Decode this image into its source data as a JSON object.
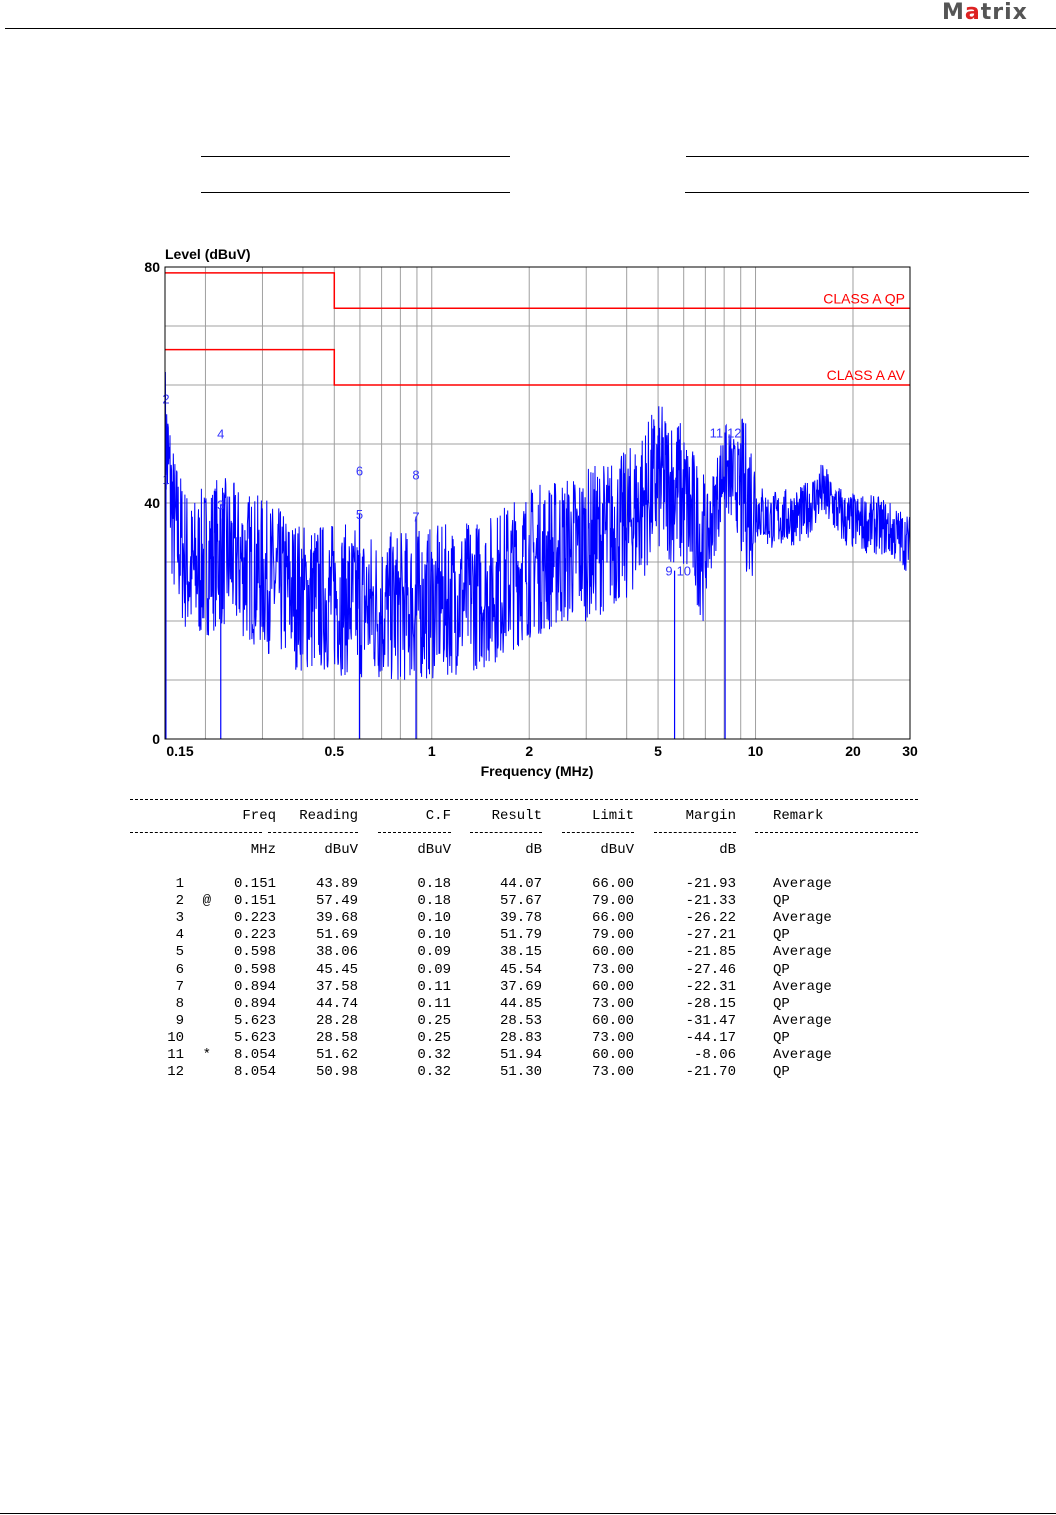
{
  "header": {
    "logo_text": "Matrix"
  },
  "chart_data": {
    "type": "line",
    "ylabel": "Level (dBuV)",
    "xlabel": "Frequency (MHz)",
    "xscale": "log",
    "xlim": [
      0.15,
      30
    ],
    "ylim": [
      0,
      80
    ],
    "y_ticks": [
      {
        "v": 80,
        "label": "80"
      },
      {
        "v": 40,
        "label": "40"
      },
      {
        "v": 0,
        "label": "0"
      }
    ],
    "x_ticks": [
      {
        "v": 0.15,
        "label": "0.15"
      },
      {
        "v": 0.5,
        "label": "0.5"
      },
      {
        "v": 1,
        "label": "1"
      },
      {
        "v": 2,
        "label": "2"
      },
      {
        "v": 5,
        "label": "5"
      },
      {
        "v": 10,
        "label": "10"
      },
      {
        "v": 20,
        "label": "20"
      },
      {
        "v": 30,
        "label": "30"
      }
    ],
    "x_grid": [
      0.2,
      0.3,
      0.4,
      0.5,
      0.6,
      0.7,
      0.8,
      0.9,
      1,
      2,
      3,
      4,
      5,
      6,
      7,
      8,
      9,
      10,
      20
    ],
    "y_grid": [
      10,
      20,
      30,
      40,
      50,
      60,
      70
    ],
    "limits": [
      {
        "name": "CLASS A QP",
        "color": "#ff0000",
        "points": [
          [
            0.15,
            79
          ],
          [
            0.5,
            79
          ],
          [
            0.5,
            73
          ],
          [
            30,
            73
          ]
        ]
      },
      {
        "name": "CLASS A AV",
        "color": "#ff0000",
        "points": [
          [
            0.15,
            66
          ],
          [
            0.5,
            66
          ],
          [
            0.5,
            60
          ],
          [
            30,
            60
          ]
        ]
      }
    ],
    "spectrum_envelope": {
      "color": "#0000ff",
      "points": [
        [
          0.15,
          52
        ],
        [
          0.16,
          36
        ],
        [
          0.18,
          28
        ],
        [
          0.22,
          32
        ],
        [
          0.3,
          28
        ],
        [
          0.4,
          24
        ],
        [
          0.5,
          24
        ],
        [
          0.7,
          22
        ],
        [
          1,
          23
        ],
        [
          1.5,
          25
        ],
        [
          2,
          30
        ],
        [
          3,
          33
        ],
        [
          4,
          36
        ],
        [
          5,
          44
        ],
        [
          5.8,
          42
        ],
        [
          7,
          32
        ],
        [
          8,
          46
        ],
        [
          9,
          42
        ],
        [
          11,
          37
        ],
        [
          14,
          38
        ],
        [
          16,
          42
        ],
        [
          19,
          37
        ],
        [
          25,
          36
        ],
        [
          30,
          33
        ]
      ]
    },
    "markers": [
      {
        "label": "1",
        "freq": 0.151,
        "level": 44.07
      },
      {
        "label": "2",
        "freq": 0.151,
        "level": 57.67
      },
      {
        "label": "3",
        "freq": 0.223,
        "level": 39.78
      },
      {
        "label": "4",
        "freq": 0.223,
        "level": 51.79
      },
      {
        "label": "5",
        "freq": 0.598,
        "level": 38.15
      },
      {
        "label": "6",
        "freq": 0.598,
        "level": 45.54
      },
      {
        "label": "7",
        "freq": 0.894,
        "level": 37.69
      },
      {
        "label": "8",
        "freq": 0.894,
        "level": 44.85
      },
      {
        "label": "9",
        "freq": 5.623,
        "level": 28.53
      },
      {
        "label": "10",
        "freq": 5.623,
        "level": 28.83
      },
      {
        "label": "11",
        "freq": 8.054,
        "level": 51.94
      },
      {
        "label": "12",
        "freq": 8.054,
        "level": 51.3
      }
    ],
    "marker_color": "#0000ff"
  },
  "table": {
    "headers": [
      "Freq",
      "Reading",
      "C.F",
      "Result",
      "Limit",
      "Margin",
      "Remark"
    ],
    "units": [
      "MHz",
      "dBuV",
      "dBuV",
      "dB",
      "dBuV",
      "dB"
    ],
    "rows": [
      [
        "1",
        "",
        "0.151",
        "43.89",
        "0.18",
        "44.07",
        "66.00",
        "-21.93",
        "Average"
      ],
      [
        "2",
        "@",
        "0.151",
        "57.49",
        "0.18",
        "57.67",
        "79.00",
        "-21.33",
        "QP"
      ],
      [
        "3",
        "",
        "0.223",
        "39.68",
        "0.10",
        "39.78",
        "66.00",
        "-26.22",
        "Average"
      ],
      [
        "4",
        "",
        "0.223",
        "51.69",
        "0.10",
        "51.79",
        "79.00",
        "-27.21",
        "QP"
      ],
      [
        "5",
        "",
        "0.598",
        "38.06",
        "0.09",
        "38.15",
        "60.00",
        "-21.85",
        "Average"
      ],
      [
        "6",
        "",
        "0.598",
        "45.45",
        "0.09",
        "45.54",
        "73.00",
        "-27.46",
        "QP"
      ],
      [
        "7",
        "",
        "0.894",
        "37.58",
        "0.11",
        "37.69",
        "60.00",
        "-22.31",
        "Average"
      ],
      [
        "8",
        "",
        "0.894",
        "44.74",
        "0.11",
        "44.85",
        "73.00",
        "-28.15",
        "QP"
      ],
      [
        "9",
        "",
        "5.623",
        "28.28",
        "0.25",
        "28.53",
        "60.00",
        "-31.47",
        "Average"
      ],
      [
        "10",
        "",
        "5.623",
        "28.58",
        "0.25",
        "28.83",
        "73.00",
        "-44.17",
        "QP"
      ],
      [
        "11",
        "*",
        "8.054",
        "51.62",
        "0.32",
        "51.94",
        "60.00",
        "-8.06",
        "Average"
      ],
      [
        "12",
        "",
        "8.054",
        "50.98",
        "0.32",
        "51.30",
        "73.00",
        "-21.70",
        "QP"
      ]
    ]
  }
}
